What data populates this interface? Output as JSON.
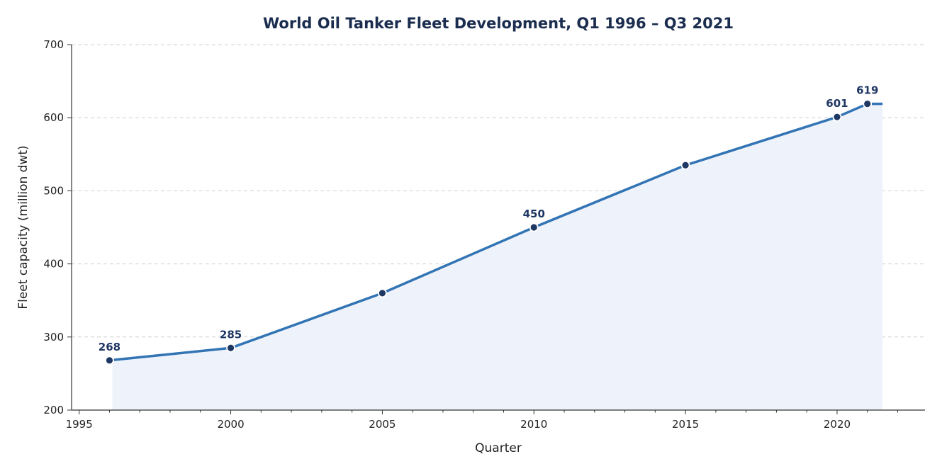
{
  "chart_data": {
    "type": "line",
    "title": "World Oil Tanker Fleet Development, Q1 1996 – Q3 2021",
    "xlabel": "Quarter",
    "ylabel": "Fleet capacity (million dwt)",
    "xlim": [
      1994.75,
      2022.9
    ],
    "ylim": [
      200,
      700
    ],
    "x_ticks": [
      1995,
      2000,
      2005,
      2010,
      2015,
      2020
    ],
    "x_minor_step": 1,
    "y_ticks": [
      200,
      300,
      400,
      500,
      600,
      700
    ],
    "grid": "y-dashed",
    "series": [
      {
        "x": [
          1996.0,
          2000.0,
          2005.0,
          2010.0,
          2015.0,
          2020.0,
          2021.0,
          2021.5
        ],
        "values": [
          268,
          285,
          360,
          450,
          535,
          601,
          619,
          619
        ],
        "markers": [
          true,
          true,
          true,
          true,
          true,
          true,
          true,
          false
        ]
      }
    ],
    "data_labels": [
      {
        "x": 1996.0,
        "y": 268,
        "text": "268"
      },
      {
        "x": 2000.0,
        "y": 285,
        "text": "285"
      },
      {
        "x": 2010.0,
        "y": 450,
        "text": "450"
      },
      {
        "x": 2020.0,
        "y": 601,
        "text": "601"
      },
      {
        "x": 2021.0,
        "y": 619,
        "text": "619"
      }
    ],
    "colors": {
      "line": "#3274b4",
      "fill": "#eef3fb",
      "marker": "#1f3763",
      "marker_edge": "#ffffff"
    }
  }
}
